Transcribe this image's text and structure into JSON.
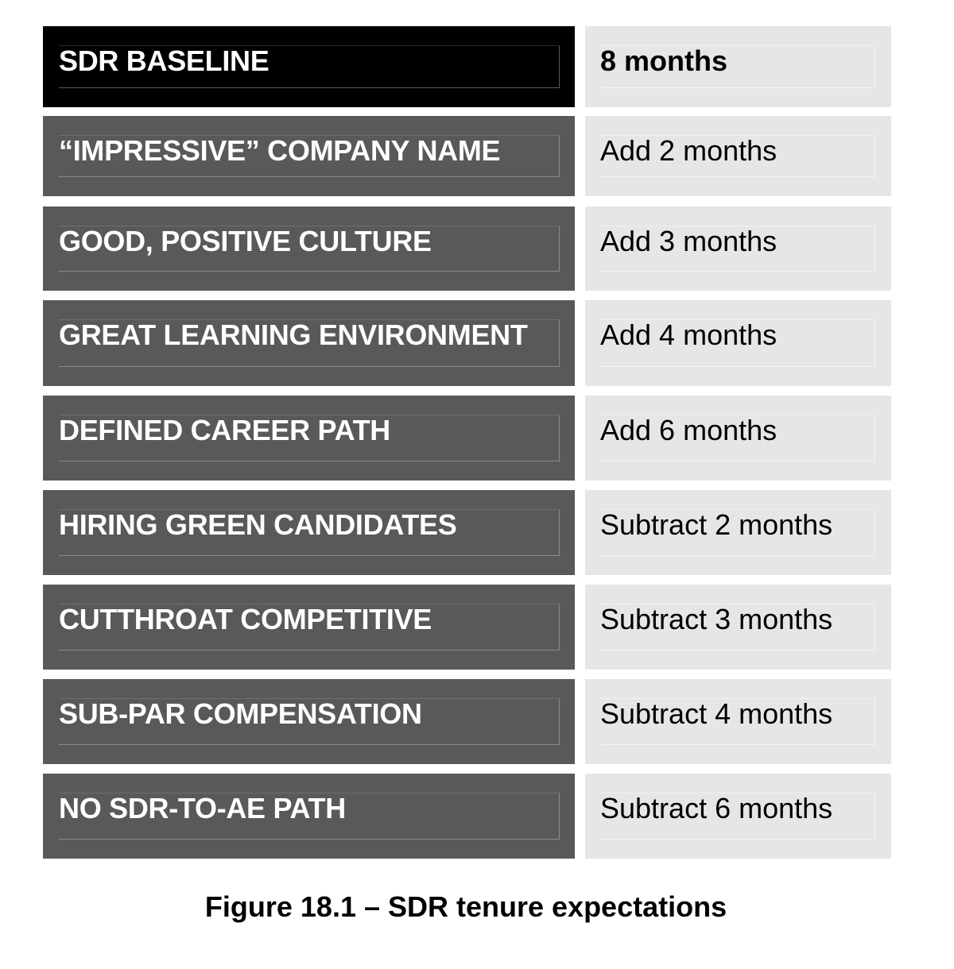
{
  "table": {
    "rows": [
      {
        "label": "SDR BASELINE",
        "value": "8 months",
        "baseline": true
      },
      {
        "label": "“IMPRESSIVE” COMPANY NAME",
        "value": "Add 2 months"
      },
      {
        "label": "GOOD, POSITIVE CULTURE",
        "value": "Add 3 months"
      },
      {
        "label": "GREAT LEARNING ENVIRONMENT",
        "value": "Add 4 months"
      },
      {
        "label": "DEFINED CAREER PATH",
        "value": "Add 6 months"
      },
      {
        "label": "HIRING GREEN CANDIDATES",
        "value": "Subtract 2 months"
      },
      {
        "label": "CUTTHROAT COMPETITIVE",
        "value": "Subtract 3 months"
      },
      {
        "label": "SUB-PAR COMPENSATION",
        "value": "Subtract 4 months"
      },
      {
        "label": "NO SDR-TO-AE PATH",
        "value": "Subtract 6 months"
      }
    ]
  },
  "caption": "Figure 18.1 – SDR tenure expectations",
  "colors": {
    "baseline_bg": "#000000",
    "factor_bg": "#595959",
    "value_bg": "#e6e6e6"
  }
}
